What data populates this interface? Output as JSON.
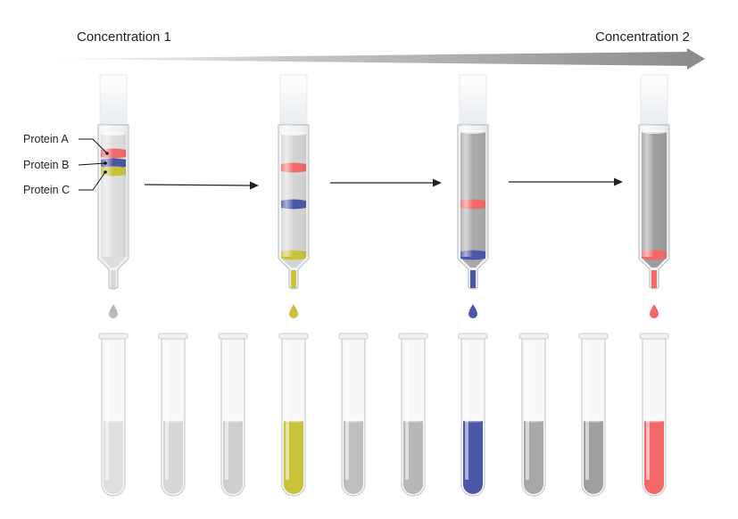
{
  "gradient": {
    "start_label": "Concentration 1",
    "end_label": "Concentration 2"
  },
  "protein_labels": [
    "Protein A",
    "Protein B",
    "Protein C"
  ],
  "colors": {
    "protein_a": "#f26868",
    "protein_b": "#4a56a6",
    "protein_c": "#c9c23a",
    "buffer_light": "#dcdcdc",
    "buffer_dark": "#9c9c9c"
  },
  "columns": [
    {
      "stage": 1,
      "eluting": "none",
      "bands": [
        "protein_a",
        "protein_b",
        "protein_c"
      ]
    },
    {
      "stage": 2,
      "eluting": "protein_c",
      "bands": [
        "protein_a",
        "protein_b",
        "protein_c"
      ]
    },
    {
      "stage": 3,
      "eluting": "protein_b",
      "bands": [
        "protein_a",
        "protein_b"
      ]
    },
    {
      "stage": 4,
      "eluting": "protein_a",
      "bands": [
        "protein_a"
      ]
    }
  ],
  "fraction_tubes": [
    {
      "index": 1,
      "content": "buffer"
    },
    {
      "index": 2,
      "content": "buffer"
    },
    {
      "index": 3,
      "content": "buffer"
    },
    {
      "index": 4,
      "content": "protein_c"
    },
    {
      "index": 5,
      "content": "buffer"
    },
    {
      "index": 6,
      "content": "buffer"
    },
    {
      "index": 7,
      "content": "protein_b"
    },
    {
      "index": 8,
      "content": "buffer"
    },
    {
      "index": 9,
      "content": "buffer"
    },
    {
      "index": 10,
      "content": "protein_a"
    }
  ]
}
